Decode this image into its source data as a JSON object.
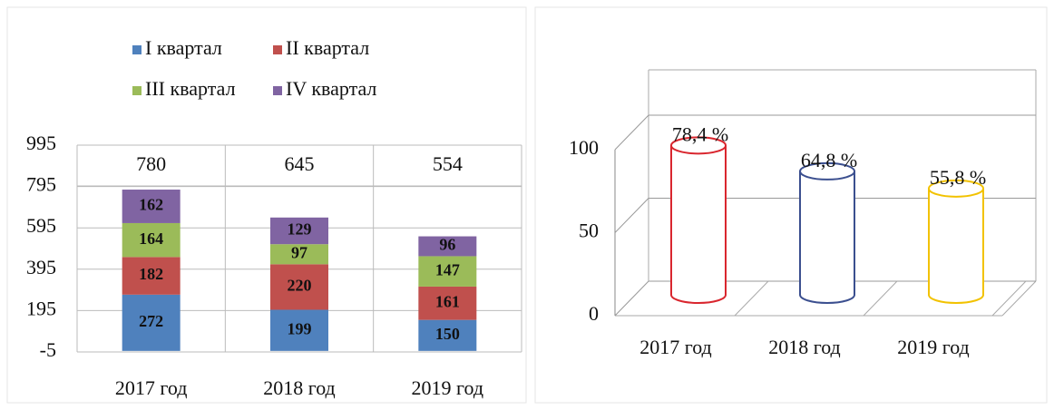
{
  "chart_data": [
    {
      "type": "stacked_bar",
      "categories": [
        "2017 год",
        "2018 год",
        "2019 год"
      ],
      "series": [
        {
          "name": "I квартал",
          "color": "#4f81bd",
          "values": [
            272,
            199,
            150
          ]
        },
        {
          "name": "II квартал",
          "color": "#c0504d",
          "values": [
            182,
            220,
            161
          ]
        },
        {
          "name": "III квартал",
          "color": "#9bbb59",
          "values": [
            164,
            97,
            147
          ]
        },
        {
          "name": "IV квартал",
          "color": "#8064a2",
          "values": [
            162,
            129,
            96
          ]
        }
      ],
      "totals": [
        780,
        645,
        554
      ],
      "ylim": [
        -5,
        995
      ],
      "yticks": [
        -5,
        195,
        395,
        595,
        795,
        995
      ],
      "grid": true
    },
    {
      "type": "cylinder",
      "categories": [
        "2017 год",
        "2018 год",
        "2019 год"
      ],
      "values": [
        78.4,
        64.8,
        55.8
      ],
      "value_labels": [
        "78,4 %",
        "64,8 %",
        "55,8 %"
      ],
      "colors": [
        "#d9262e",
        "#3b4f8f",
        "#f2c200"
      ],
      "ylim": [
        0,
        100
      ],
      "yticks": [
        0,
        50,
        100
      ],
      "grid": true
    }
  ]
}
